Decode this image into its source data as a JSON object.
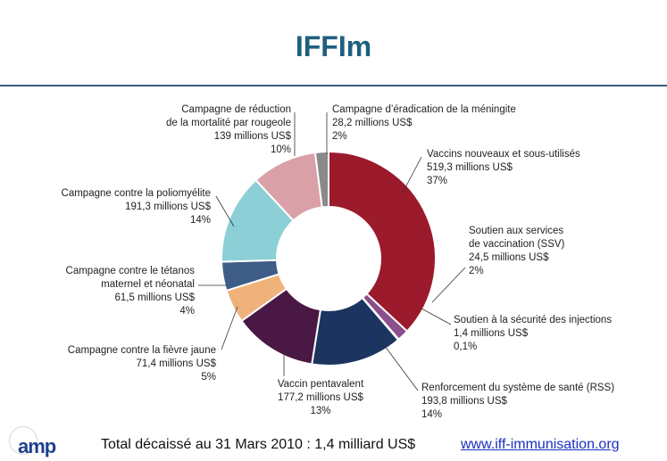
{
  "title": "IFFIm",
  "footer": {
    "total": "Total décaissé au 31 Mars 2010 : 1,4 milliard US$",
    "url": "www.iff-immunisation.org",
    "logo": "amp"
  },
  "chart_data": {
    "type": "pie",
    "donut": true,
    "title": "",
    "unit": "millions US$",
    "slices": [
      {
        "label": [
          "Vaccins nouveaux et sous-utilisés"
        ],
        "value": 519.3,
        "value_text": "519,3 millions US$",
        "percent_text": "37%",
        "color": "#9b1a2b"
      },
      {
        "label": [
          "Soutien aux services",
          "de vaccination (SSV)"
        ],
        "value": 24.5,
        "value_text": "24,5 millions US$",
        "percent_text": "2%",
        "color": "#8a4f8c"
      },
      {
        "label": [
          "Soutien à la sécurité des injections"
        ],
        "value": 1.4,
        "value_text": "1,4 millions US$",
        "percent_text": "0,1%",
        "color": "#8fbf6a"
      },
      {
        "label": [
          "Renforcement du système de santé (RSS)"
        ],
        "value": 193.8,
        "value_text": "193,8 millions US$",
        "percent_text": "14%",
        "color": "#1c3560"
      },
      {
        "label": [
          "Vaccin pentavalent"
        ],
        "value": 177.2,
        "value_text": "177,2 millions US$",
        "percent_text": "13%",
        "color": "#4a1845"
      },
      {
        "label": [
          "Campagne contre la fièvre jaune"
        ],
        "value": 71.4,
        "value_text": "71,4 millions US$",
        "percent_text": "5%",
        "color": "#efb27a"
      },
      {
        "label": [
          "Campagne contre le tétanos",
          "maternel et néonatal"
        ],
        "value": 61.5,
        "value_text": "61,5 millions US$",
        "percent_text": "4%",
        "color": "#3d5d87"
      },
      {
        "label": [
          "Campagne contre la poliomyélite"
        ],
        "value": 191.3,
        "value_text": "191,3 millions US$",
        "percent_text": "14%",
        "color": "#8ccfd7"
      },
      {
        "label": [
          "Campagne de réduction",
          "de la mortalité par rougeole"
        ],
        "value": 139,
        "value_text": "139 millions US$",
        "percent_text": "10%",
        "color": "#d9a0a8"
      },
      {
        "label": [
          "Campagne d’éradication de la méningite"
        ],
        "value": 28.2,
        "value_text": "28,2 millions US$",
        "percent_text": "2%",
        "color": "#8a8a8a"
      }
    ]
  }
}
